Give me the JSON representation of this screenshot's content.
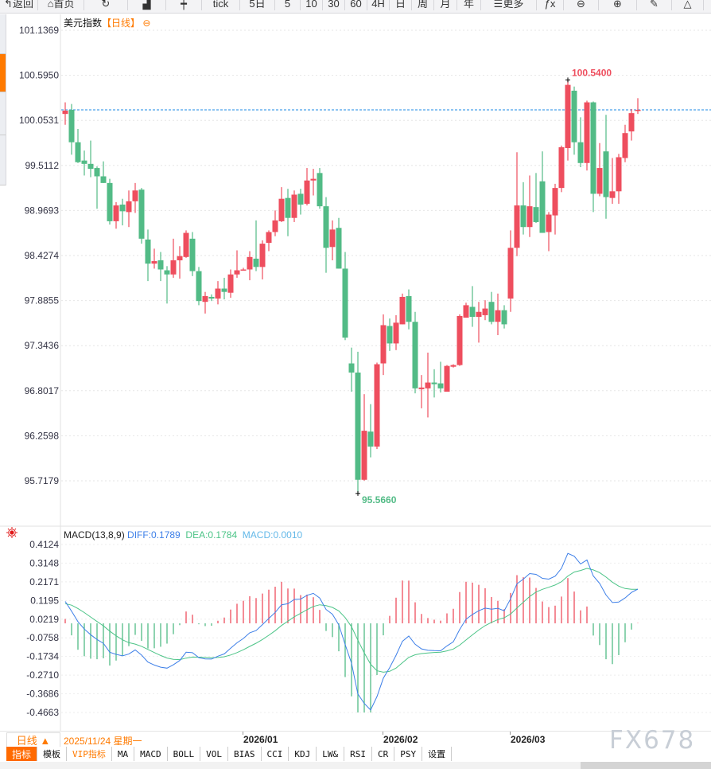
{
  "toolbar": {
    "items": [
      {
        "label": "返回",
        "icon": "back-arrow-icon"
      },
      {
        "label": "首页",
        "icon": "home-icon"
      },
      {
        "label": "",
        "icon": "refresh-icon"
      },
      {
        "label": "",
        "icon": "bar-chart-icon"
      },
      {
        "label": "",
        "icon": "candlestick-icon"
      },
      {
        "label": "tick",
        "icon": ""
      },
      {
        "label": "5日",
        "icon": ""
      },
      {
        "label": "5",
        "icon": ""
      },
      {
        "label": "10",
        "icon": ""
      },
      {
        "label": "30",
        "icon": ""
      },
      {
        "label": "60",
        "icon": ""
      },
      {
        "label": "4H",
        "icon": ""
      },
      {
        "label": "日",
        "icon": ""
      },
      {
        "label": "周",
        "icon": ""
      },
      {
        "label": "月",
        "icon": ""
      },
      {
        "label": "年",
        "icon": ""
      },
      {
        "label": "更多",
        "icon": "menu-icon"
      },
      {
        "label": "",
        "icon": "fx-icon"
      },
      {
        "label": "",
        "icon": "zoom-out-icon"
      },
      {
        "label": "",
        "icon": "zoom-in-icon"
      },
      {
        "label": "",
        "icon": "pen-icon"
      },
      {
        "label": "",
        "icon": "triangle-icon"
      }
    ]
  },
  "colors": {
    "up": "#ee4e5e",
    "down": "#52bb86",
    "diff": "#3d7fe8",
    "dea": "#4cc487",
    "macd": "#63b8e8",
    "accent": "#ff7a00",
    "last_price_line": "#1e88e5"
  },
  "chart_data": [
    {
      "type": "candlestick",
      "title": "美元指数",
      "timeframe": "【日线】",
      "yticks": [
        "101.1369",
        "100.5950",
        "100.0531",
        "99.5112",
        "98.9693",
        "98.4274",
        "97.8855",
        "97.3436",
        "96.8017",
        "96.2598",
        "95.7179"
      ],
      "ylim": [
        95.7179,
        101.1369
      ],
      "grid": "horizontal-dotted",
      "high_label": "100.5400",
      "low_label": "95.5660",
      "last_price": 100.18,
      "x_labels": [
        {
          "label": "2026/01",
          "index": 28
        },
        {
          "label": "2026/02",
          "index": 50
        },
        {
          "label": "2026/03",
          "index": 70
        }
      ],
      "ohlc": [
        [
          100.13,
          100.17,
          100.27,
          100.0
        ],
        [
          100.18,
          99.79,
          100.25,
          99.64
        ],
        [
          99.79,
          99.55,
          99.95,
          99.54
        ],
        [
          99.57,
          99.53,
          99.69,
          99.39
        ],
        [
          99.53,
          99.47,
          99.81,
          99.37
        ],
        [
          99.48,
          99.38,
          99.5,
          98.99
        ],
        [
          99.38,
          99.3,
          99.56,
          99.3
        ],
        [
          99.3,
          98.84,
          99.35,
          98.8
        ],
        [
          98.84,
          99.03,
          99.07,
          98.75
        ],
        [
          99.04,
          98.96,
          99.11,
          98.79
        ],
        [
          98.95,
          99.08,
          99.21,
          98.77
        ],
        [
          99.08,
          99.21,
          99.3,
          98.94
        ],
        [
          99.22,
          98.63,
          99.24,
          98.57
        ],
        [
          98.62,
          98.33,
          98.74,
          98.12
        ],
        [
          98.33,
          98.36,
          98.51,
          98.27
        ],
        [
          98.37,
          98.26,
          98.47,
          98.12
        ],
        [
          98.25,
          98.2,
          98.3,
          97.85
        ],
        [
          98.2,
          98.37,
          98.63,
          98.16
        ],
        [
          98.37,
          98.42,
          98.54,
          98.15
        ],
        [
          98.41,
          98.7,
          98.73,
          98.4
        ],
        [
          98.63,
          98.24,
          98.71,
          98.18
        ],
        [
          98.24,
          97.88,
          98.29,
          97.83
        ],
        [
          97.87,
          97.94,
          97.99,
          97.73
        ],
        [
          97.93,
          97.91,
          97.96,
          97.88
        ],
        [
          97.91,
          98.03,
          98.12,
          97.84
        ],
        [
          98.03,
          97.99,
          98.16,
          97.9
        ],
        [
          97.98,
          98.2,
          98.26,
          97.92
        ],
        [
          98.2,
          98.25,
          98.49,
          98.16
        ],
        [
          98.25,
          98.26,
          98.28,
          98.25
        ],
        [
          98.26,
          98.41,
          98.48,
          98.13
        ],
        [
          98.39,
          98.29,
          98.85,
          98.24
        ],
        [
          98.29,
          98.57,
          98.61,
          98.14
        ],
        [
          98.58,
          98.71,
          98.73,
          98.48
        ],
        [
          98.71,
          98.85,
          98.97,
          98.66
        ],
        [
          98.84,
          99.11,
          99.25,
          98.83
        ],
        [
          99.12,
          98.88,
          99.23,
          98.66
        ],
        [
          98.88,
          99.16,
          99.21,
          98.83
        ],
        [
          99.17,
          99.04,
          99.23,
          98.92
        ],
        [
          99.05,
          99.33,
          99.48,
          99.03
        ],
        [
          99.33,
          99.35,
          99.47,
          99.15
        ],
        [
          99.42,
          99.02,
          99.48,
          98.99
        ],
        [
          99.02,
          98.52,
          99.13,
          98.22
        ],
        [
          98.53,
          98.74,
          98.85,
          98.37
        ],
        [
          98.76,
          98.27,
          98.88,
          98.27
        ],
        [
          98.27,
          97.44,
          98.47,
          97.41
        ],
        [
          97.13,
          97.02,
          97.32,
          96.79
        ],
        [
          97.02,
          95.73,
          97.27,
          95.566
        ],
        [
          95.73,
          96.32,
          96.76,
          95.72
        ],
        [
          96.31,
          96.13,
          96.64,
          96.0
        ],
        [
          96.13,
          97.12,
          97.14,
          96.1
        ],
        [
          97.13,
          97.59,
          97.72,
          96.99
        ],
        [
          97.58,
          97.37,
          97.67,
          97.28
        ],
        [
          97.37,
          97.62,
          97.71,
          97.29
        ],
        [
          97.6,
          97.93,
          97.97,
          97.6
        ],
        [
          97.94,
          97.63,
          98.02,
          97.54
        ],
        [
          97.63,
          96.83,
          97.75,
          96.77
        ],
        [
          96.82,
          96.84,
          96.99,
          96.59
        ],
        [
          96.83,
          96.9,
          97.26,
          96.48
        ],
        [
          96.9,
          96.88,
          97.06,
          96.72
        ],
        [
          96.89,
          96.83,
          97.15,
          96.78
        ],
        [
          96.79,
          97.1,
          97.11,
          96.79
        ],
        [
          97.09,
          97.11,
          97.12,
          97.08
        ],
        [
          97.11,
          97.7,
          97.72,
          97.1
        ],
        [
          97.68,
          97.83,
          97.86,
          97.68
        ],
        [
          97.81,
          97.69,
          98.06,
          97.57
        ],
        [
          97.69,
          97.75,
          97.87,
          97.38
        ],
        [
          97.71,
          97.79,
          97.89,
          97.65
        ],
        [
          97.87,
          97.63,
          97.99,
          97.6
        ],
        [
          97.63,
          97.77,
          97.97,
          97.47
        ],
        [
          97.77,
          97.6,
          97.83,
          97.55
        ],
        [
          97.91,
          98.52,
          98.73,
          97.75
        ],
        [
          98.52,
          99.03,
          99.67,
          98.42
        ],
        [
          99.03,
          98.77,
          99.31,
          98.68
        ],
        [
          98.77,
          99.02,
          99.39,
          98.65
        ],
        [
          99.01,
          98.83,
          99.42,
          98.82
        ],
        [
          99.32,
          98.7,
          99.68,
          98.7
        ],
        [
          98.71,
          98.92,
          98.95,
          98.48
        ],
        [
          98.91,
          99.24,
          99.29,
          98.68
        ],
        [
          99.24,
          99.73,
          99.75,
          99.19
        ],
        [
          99.72,
          100.48,
          100.54,
          99.57
        ],
        [
          100.41,
          99.79,
          100.46,
          99.64
        ],
        [
          99.79,
          99.54,
          100.09,
          99.49
        ],
        [
          99.54,
          100.27,
          100.29,
          99.45
        ],
        [
          100.27,
          99.17,
          100.28,
          98.95
        ],
        [
          99.17,
          99.48,
          99.78,
          99.14
        ],
        [
          99.68,
          99.13,
          100.12,
          98.87
        ],
        [
          99.12,
          99.2,
          99.6,
          99.05
        ],
        [
          99.2,
          99.61,
          99.65,
          99.05
        ],
        [
          99.6,
          99.9,
          100.0,
          99.55
        ],
        [
          99.92,
          100.14,
          100.19,
          99.81
        ],
        [
          100.17,
          100.18,
          100.32,
          100.13
        ]
      ]
    },
    {
      "type": "macd",
      "label": "MACD(13,8,9)",
      "params": {
        "slow": 13,
        "fast": 8,
        "signal": 9
      },
      "diff_text": "DIFF:0.1789",
      "dea_text": "DEA:0.1784",
      "macd_text": "MACD:0.0010",
      "yticks": [
        "0.4124",
        "0.3148",
        "0.2171",
        "0.1195",
        "0.0219",
        "-0.0758",
        "-0.1734",
        "-0.2710",
        "-0.3686",
        "-0.4663"
      ],
      "ylim": [
        -0.4663,
        0.4124
      ]
    }
  ],
  "axis": {
    "period_button": "日线 ▲",
    "current_date": "2025/11/24 星期一"
  },
  "tabs": [
    "指标",
    "模板",
    "VIP指标",
    "MA",
    "MACD",
    "BOLL",
    "VOL",
    "BIAS",
    "CCI",
    "KDJ",
    "LW&",
    "RSI",
    "CR",
    "PSY",
    "设置"
  ],
  "watermark": "FX678"
}
